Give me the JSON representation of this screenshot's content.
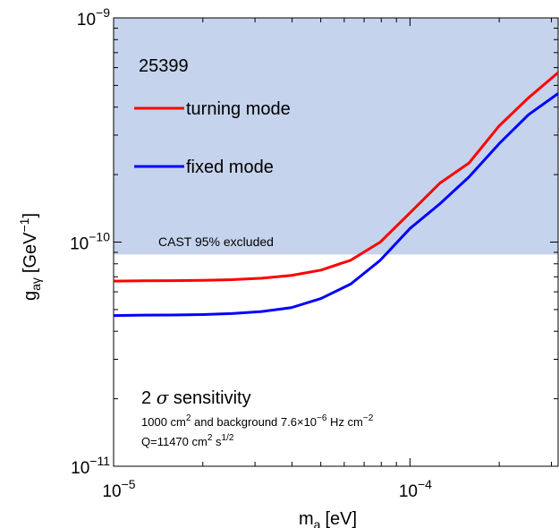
{
  "chart_data": {
    "type": "line",
    "xscale": "log",
    "yscale": "log",
    "xlim": [
      1e-05,
      0.000316
    ],
    "ylim": [
      1e-11,
      1e-09
    ],
    "xlabel_main": "m",
    "xlabel_sub": "a",
    "xlabel_unit": "[eV]",
    "ylabel_main": "g",
    "ylabel_sub": "aγ",
    "ylabel_unit_pre": "[GeV",
    "ylabel_unit_sup": "−1",
    "ylabel_unit_post": "]",
    "x_ticks": [
      {
        "value": 1e-05,
        "base": "10",
        "exp": "−5"
      },
      {
        "value": 0.0001,
        "base": "10",
        "exp": "−4"
      }
    ],
    "y_ticks": [
      {
        "value": 1e-11,
        "base": "10",
        "exp": "−11"
      },
      {
        "value": 1e-10,
        "base": "10",
        "exp": "−10"
      },
      {
        "value": 1e-09,
        "base": "10",
        "exp": "−9"
      }
    ],
    "excluded_region": {
      "label": "CAST 95% excluded",
      "y_min": 8.8e-11,
      "color": "#c5d3ec"
    },
    "legend_title": "25399",
    "series": [
      {
        "name": "turning mode",
        "color": "#ff0000",
        "x": [
          1e-05,
          1.26e-05,
          1.58e-05,
          2e-05,
          2.51e-05,
          3.16e-05,
          3.98e-05,
          5.01e-05,
          6.31e-05,
          7.94e-05,
          0.0001,
          0.000126,
          0.000158,
          0.0002,
          0.000251,
          0.000316
        ],
        "y": [
          6.7e-11,
          6.72e-11,
          6.73e-11,
          6.75e-11,
          6.8e-11,
          6.9e-11,
          7.1e-11,
          7.5e-11,
          8.3e-11,
          1e-10,
          1.35e-10,
          1.83e-10,
          2.25e-10,
          3.3e-10,
          4.4e-10,
          5.7e-10
        ]
      },
      {
        "name": "fixed mode",
        "color": "#0000ff",
        "x": [
          1e-05,
          1.26e-05,
          1.58e-05,
          2e-05,
          2.51e-05,
          3.16e-05,
          3.98e-05,
          5.01e-05,
          6.31e-05,
          7.94e-05,
          0.0001,
          0.000126,
          0.000158,
          0.0002,
          0.000251,
          0.000316
        ],
        "y": [
          4.7e-11,
          4.72e-11,
          4.73e-11,
          4.75e-11,
          4.8e-11,
          4.9e-11,
          5.1e-11,
          5.6e-11,
          6.5e-11,
          8.3e-11,
          1.15e-10,
          1.48e-10,
          1.95e-10,
          2.75e-10,
          3.7e-10,
          4.6e-10
        ]
      }
    ],
    "annotation": {
      "line1_prefix": "2 ",
      "line1_sigma": "σ",
      "line1_suffix": " sensitivity",
      "line2_a": "1000 cm",
      "line2_sup1": "2",
      "line2_b": " and background 7.6×10",
      "line2_sup2": "−6",
      "line2_c": " Hz cm",
      "line2_sup3": "−2",
      "line3_a": "Q=11470 cm",
      "line3_sup1": "2",
      "line3_b": " s",
      "line3_sup2": "1/2"
    }
  }
}
